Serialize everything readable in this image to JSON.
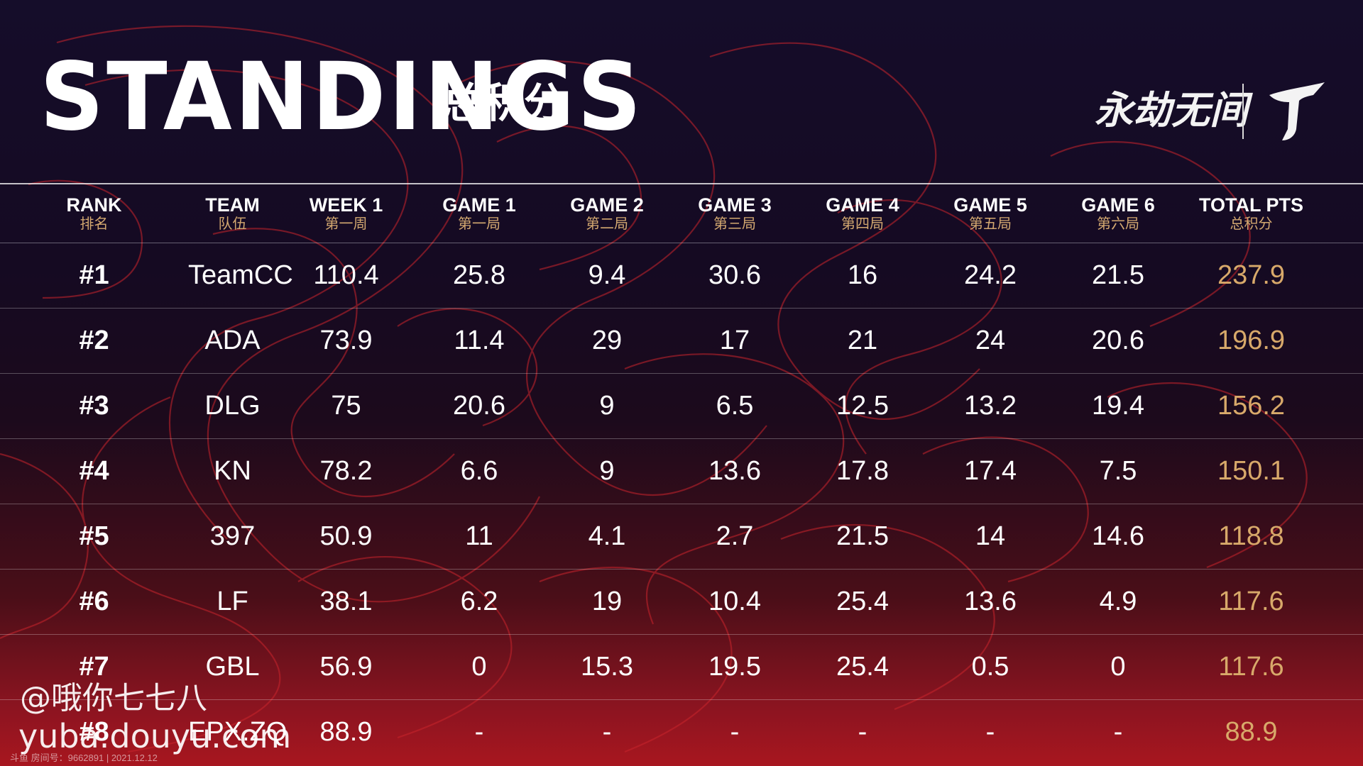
{
  "header": {
    "title_en": "STANDINGS",
    "title_cn": "总积分",
    "logo_text": "永劫无间"
  },
  "columns": [
    {
      "en": "RANK",
      "cn": "排名"
    },
    {
      "en": "TEAM",
      "cn": "队伍"
    },
    {
      "en": "WEEK 1",
      "cn": "第一周"
    },
    {
      "en": "GAME 1",
      "cn": "第一局"
    },
    {
      "en": "GAME 2",
      "cn": "第二局"
    },
    {
      "en": "GAME 3",
      "cn": "第三局"
    },
    {
      "en": "GAME 4",
      "cn": "第四局"
    },
    {
      "en": "GAME 5",
      "cn": "第五局"
    },
    {
      "en": "GAME 6",
      "cn": "第六局"
    },
    {
      "en": "TOTAL PTS",
      "cn": "总积分"
    }
  ],
  "rows": [
    {
      "rank": "#1",
      "team": "TeamCC",
      "week1": "110.4",
      "g1": "25.8",
      "g2": "9.4",
      "g3": "30.6",
      "g4": "16",
      "g5": "24.2",
      "g6": "21.5",
      "total": "237.9"
    },
    {
      "rank": "#2",
      "team": "ADA",
      "week1": "73.9",
      "g1": "11.4",
      "g2": "29",
      "g3": "17",
      "g4": "21",
      "g5": "24",
      "g6": "20.6",
      "total": "196.9"
    },
    {
      "rank": "#3",
      "team": "DLG",
      "week1": "75",
      "g1": "20.6",
      "g2": "9",
      "g3": "6.5",
      "g4": "12.5",
      "g5": "13.2",
      "g6": "19.4",
      "total": "156.2"
    },
    {
      "rank": "#4",
      "team": "KN",
      "week1": "78.2",
      "g1": "6.6",
      "g2": "9",
      "g3": "13.6",
      "g4": "17.8",
      "g5": "17.4",
      "g6": "7.5",
      "total": "150.1"
    },
    {
      "rank": "#5",
      "team": "397",
      "week1": "50.9",
      "g1": "11",
      "g2": "4.1",
      "g3": "2.7",
      "g4": "21.5",
      "g5": "14",
      "g6": "14.6",
      "total": "118.8"
    },
    {
      "rank": "#6",
      "team": "LF",
      "week1": "38.1",
      "g1": "6.2",
      "g2": "19",
      "g3": "10.4",
      "g4": "25.4",
      "g5": "13.6",
      "g6": "4.9",
      "total": "117.6"
    },
    {
      "rank": "#7",
      "team": "GBL",
      "week1": "56.9",
      "g1": "0",
      "g2": "15.3",
      "g3": "19.5",
      "g4": "25.4",
      "g5": "0.5",
      "g6": "0",
      "total": "117.6"
    },
    {
      "rank": "#8",
      "team": "EPX.ZQ",
      "week1": "88.9",
      "g1": "-",
      "g2": "-",
      "g3": "-",
      "g4": "-",
      "g5": "-",
      "g6": "-",
      "total": "88.9"
    }
  ],
  "watermark": {
    "line1": "@哦你七七八",
    "line2": "yuba.douyu.com",
    "footnote": "斗鱼 房间号：9662891 | 2021.12.12"
  },
  "colors": {
    "accent_gold": "#d8a96a",
    "background_top": "#150d2a",
    "background_bottom": "#a8161f",
    "decor_line": "#c8242c"
  },
  "icons": {
    "logo_mark": "stylized-j-emblem-icon"
  }
}
